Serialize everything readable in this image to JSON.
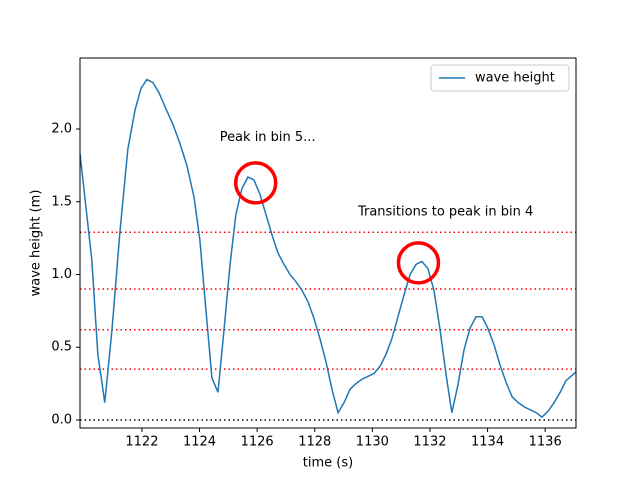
{
  "chart_data": {
    "type": "line",
    "xlabel": "time (s)",
    "ylabel": "wave height (m)",
    "xlim": [
      1119.85,
      1137.07
    ],
    "ylim": [
      -0.055,
      2.488
    ],
    "xticks": [
      1122,
      1124,
      1126,
      1128,
      1130,
      1132,
      1134,
      1136
    ],
    "yticks": [
      {
        "value": 0,
        "label": "0.0"
      },
      {
        "value": 0.5,
        "label": "0.5"
      },
      {
        "value": 1,
        "label": "1.0"
      },
      {
        "value": 1.5,
        "label": "1.5"
      },
      {
        "value": 2,
        "label": "2.0"
      }
    ],
    "legend": "upper right",
    "series": [
      {
        "name": "wave height",
        "color": "#1f77b4",
        "x": [
          1119.85,
          1120.26,
          1120.47,
          1120.71,
          1120.96,
          1121.24,
          1121.51,
          1121.76,
          1121.97,
          1122.17,
          1122.38,
          1122.59,
          1122.83,
          1123.08,
          1123.32,
          1123.56,
          1123.81,
          1124.01,
          1124.22,
          1124.43,
          1124.64,
          1124.85,
          1125.06,
          1125.26,
          1125.47,
          1125.68,
          1125.89,
          1126.1,
          1126.31,
          1126.52,
          1126.72,
          1126.93,
          1127.14,
          1127.35,
          1127.56,
          1127.77,
          1127.97,
          1128.18,
          1128.39,
          1128.6,
          1128.81,
          1129.02,
          1129.22,
          1129.43,
          1129.64,
          1129.85,
          1130.06,
          1130.27,
          1130.47,
          1130.68,
          1130.89,
          1131.1,
          1131.31,
          1131.52,
          1131.72,
          1131.93,
          1132.14,
          1132.35,
          1132.56,
          1132.76,
          1132.97,
          1133.18,
          1133.39,
          1133.6,
          1133.81,
          1134.01,
          1134.22,
          1134.43,
          1134.64,
          1134.85,
          1135.06,
          1135.27,
          1135.48,
          1135.69,
          1135.89,
          1136.1,
          1136.31,
          1136.52,
          1136.72,
          1137.07
        ],
        "values": [
          1.83,
          1.1,
          0.45,
          0.12,
          0.62,
          1.3,
          1.86,
          2.13,
          2.28,
          2.34,
          2.32,
          2.25,
          2.14,
          2.03,
          1.9,
          1.75,
          1.53,
          1.24,
          0.76,
          0.29,
          0.19,
          0.62,
          1.07,
          1.41,
          1.59,
          1.67,
          1.65,
          1.55,
          1.41,
          1.27,
          1.15,
          1.07,
          1.0,
          0.95,
          0.89,
          0.81,
          0.7,
          0.56,
          0.4,
          0.21,
          0.05,
          0.12,
          0.21,
          0.25,
          0.28,
          0.3,
          0.32,
          0.37,
          0.45,
          0.56,
          0.71,
          0.86,
          1.0,
          1.07,
          1.09,
          1.04,
          0.89,
          0.62,
          0.31,
          0.05,
          0.24,
          0.48,
          0.63,
          0.71,
          0.71,
          0.63,
          0.52,
          0.38,
          0.26,
          0.16,
          0.12,
          0.09,
          0.07,
          0.05,
          0.02,
          0.06,
          0.12,
          0.19,
          0.27,
          0.33
        ]
      }
    ],
    "hlines": [
      {
        "value": 0,
        "color": "#000000"
      },
      {
        "value": 0.35,
        "color": "#ff0000"
      },
      {
        "value": 0.62,
        "color": "#ff0000"
      },
      {
        "value": 0.9,
        "color": "#ff0000"
      },
      {
        "value": 1.29,
        "color": "#ff0000"
      }
    ],
    "highlights": [
      {
        "x": 1125.95,
        "y": 1.63,
        "color": "#ff0000"
      },
      {
        "x": 1131.6,
        "y": 1.08,
        "color": "#ff0000"
      }
    ],
    "annotations": [
      {
        "text": "Peak in bin 5...",
        "x": 1124.7,
        "y": 1.94
      },
      {
        "text": "Transitions to peak in bin 4",
        "x": 1129.5,
        "y": 1.43
      }
    ]
  }
}
